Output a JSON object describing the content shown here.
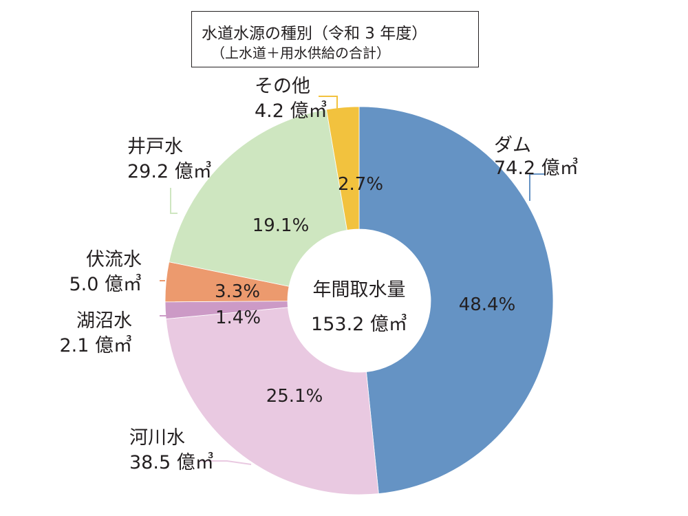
{
  "title": {
    "line1": "水道水源の種別（令和 3 年度）",
    "line2": "（上水道＋用水供給の合計）"
  },
  "center": {
    "label": "年間取水量",
    "total": "153.2 億㎥"
  },
  "chart_data": {
    "type": "pie",
    "donut": true,
    "start": "12 o'clock, clockwise",
    "title": "水道水源の種別（令和 3 年度）",
    "subtitle": "（上水道＋用水供給の合計）",
    "total_label": "年間取水量",
    "total_value": 153.2,
    "unit": "億㎥",
    "slices": [
      {
        "name": "ダム",
        "value": 74.2,
        "value_label": "74.2 億㎥",
        "percent": 48.4,
        "percent_label": "48.4%",
        "color": "#6593c4"
      },
      {
        "name": "河川水",
        "value": 38.5,
        "value_label": "38.5 億㎥",
        "percent": 25.1,
        "percent_label": "25.1%",
        "color": "#e9c9e1"
      },
      {
        "name": "湖沼水",
        "value": 2.1,
        "value_label": "2.1 億㎥",
        "percent": 1.4,
        "percent_label": "1.4%",
        "color": "#cc9ac6"
      },
      {
        "name": "伏流水",
        "value": 5.0,
        "value_label": "5.0 億㎥",
        "percent": 3.3,
        "percent_label": "3.3%",
        "color": "#ec9a6e"
      },
      {
        "name": "井戸水",
        "value": 29.2,
        "value_label": "29.2 億㎥",
        "percent": 19.1,
        "percent_label": "19.1%",
        "color": "#cee6c0"
      },
      {
        "name": "その他",
        "value": 4.2,
        "value_label": "4.2 億㎥",
        "percent": 2.7,
        "percent_label": "2.7%",
        "color": "#f2c23e"
      }
    ]
  }
}
